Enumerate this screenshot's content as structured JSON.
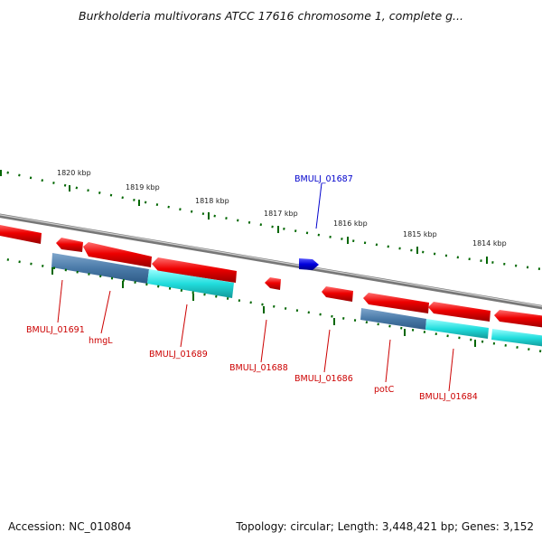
{
  "title": "Burkholderia multivorans ATCC 17616 chromosome 1, complete g...",
  "accession_text": "Accession: NC_010804",
  "summary_text": "Topology: circular; Length: 3,448,421 bp; Genes: 3,152",
  "ruler_labels": [
    "1820 kbp",
    "1819 kbp",
    "1818 kbp",
    "1817 kbp",
    "1816 kbp",
    "1815 kbp",
    "1814 kbp"
  ],
  "gene_labels": [
    {
      "text": "BMULJ_01687",
      "strand": "forward"
    },
    {
      "text": "BMULJ_01691",
      "strand": "reverse"
    },
    {
      "text": "hmgL",
      "strand": "reverse"
    },
    {
      "text": "BMULJ_01689",
      "strand": "reverse"
    },
    {
      "text": "BMULJ_01688",
      "strand": "reverse"
    },
    {
      "text": "BMULJ_01686",
      "strand": "reverse"
    },
    {
      "text": "potC",
      "strand": "reverse"
    },
    {
      "text": "BMULJ_01684",
      "strand": "reverse"
    }
  ],
  "colors": {
    "reverse_gene": "#ee0000",
    "forward_gene": "#0000dd",
    "backbone": "#888888",
    "ruler": "#006600",
    "feature_dark": "#4a7aa8",
    "feature_light": "#22dddd",
    "label_reverse": "#cc0000",
    "label_forward": "#0000cc"
  }
}
